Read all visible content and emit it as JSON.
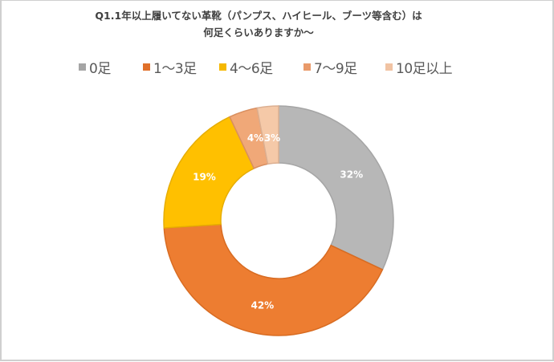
{
  "chart_data": {
    "type": "pie",
    "variant": "doughnut",
    "title": "Q1.1年以上履いてない革靴（パンプス、ハイヒール、ブーツ等含む）は何足くらいありますか〜",
    "title_lines": [
      "Q1.1年以上履いてない革靴（パンプス、ハイヒール、ブーツ等含む）は",
      "何足くらいありますか〜"
    ],
    "categories": [
      "0足",
      "1〜3足",
      "4〜6足",
      "7〜9足",
      "10足以上"
    ],
    "values": [
      32,
      42,
      19,
      4,
      3
    ],
    "unit": "%",
    "data_labels": [
      "32%",
      "42%",
      "19%",
      "4%",
      "3%"
    ],
    "colors": [
      "#b7b7b7",
      "#ed7d31",
      "#ffc000",
      "#f0a878",
      "#f5c9a8"
    ],
    "border_colors": [
      "#a5a5a5",
      "#d86c22",
      "#e6ad00",
      "#d98f60",
      "#dcb092"
    ],
    "legend_position": "top",
    "start_angle_deg": 0,
    "direction": "clockwise",
    "hole_ratio": 0.5
  },
  "legend": {
    "items": [
      {
        "label": "0足",
        "color": "#a5a5a5"
      },
      {
        "label": "1〜3足",
        "color": "#e0702a"
      },
      {
        "label": "4〜6足",
        "color": "#f5b800"
      },
      {
        "label": "7〜9足",
        "color": "#e99a6a"
      },
      {
        "label": "10足以上",
        "color": "#f1c3a3"
      }
    ]
  }
}
